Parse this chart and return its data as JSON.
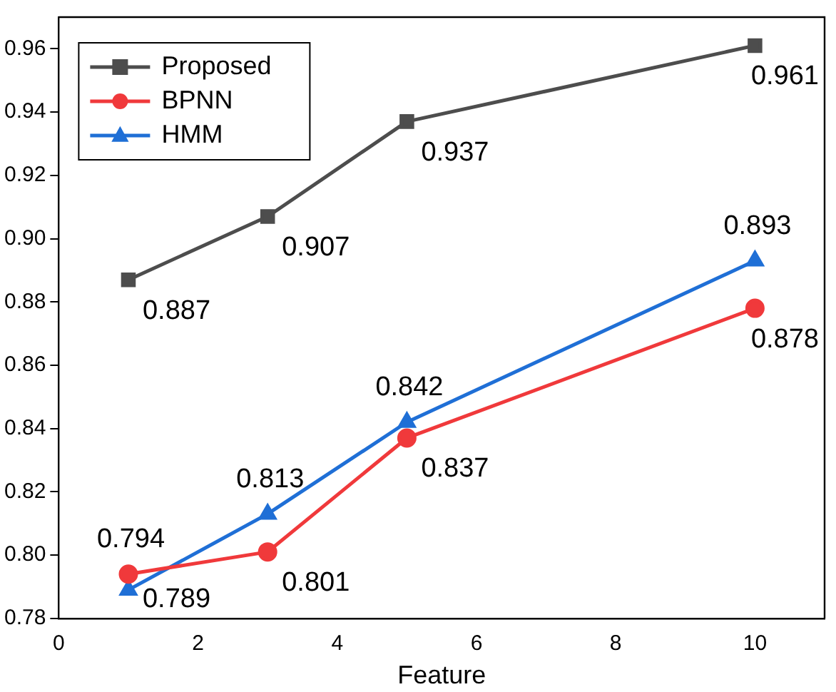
{
  "chart_data": {
    "type": "line",
    "xlabel": "Feature",
    "x": [
      1,
      3,
      5,
      10
    ],
    "series": [
      {
        "name": "Proposed",
        "color": "#4d4d4d",
        "marker": "square",
        "values": [
          0.887,
          0.907,
          0.937,
          0.961
        ]
      },
      {
        "name": "BPNN",
        "color": "#f0393b",
        "marker": "circle",
        "values": [
          0.794,
          0.801,
          0.837,
          0.878
        ]
      },
      {
        "name": "HMM",
        "color": "#1f6fd6",
        "marker": "triangle",
        "values": [
          0.789,
          0.813,
          0.842,
          0.893
        ]
      }
    ],
    "xlim": [
      0,
      11
    ],
    "xticks": [
      0,
      2,
      4,
      6,
      8,
      10
    ],
    "ylim": [
      0.78,
      0.97
    ],
    "yticks": [
      0.78,
      {
        "value": 0.8,
        "label": "0.80"
      },
      0.82,
      0.84,
      0.86,
      0.88,
      {
        "value": 0.9,
        "label": "0.90"
      },
      0.92,
      0.94,
      0.96
    ],
    "grid": false,
    "legend": "top left",
    "data_labels": true,
    "line_style": "solid"
  }
}
